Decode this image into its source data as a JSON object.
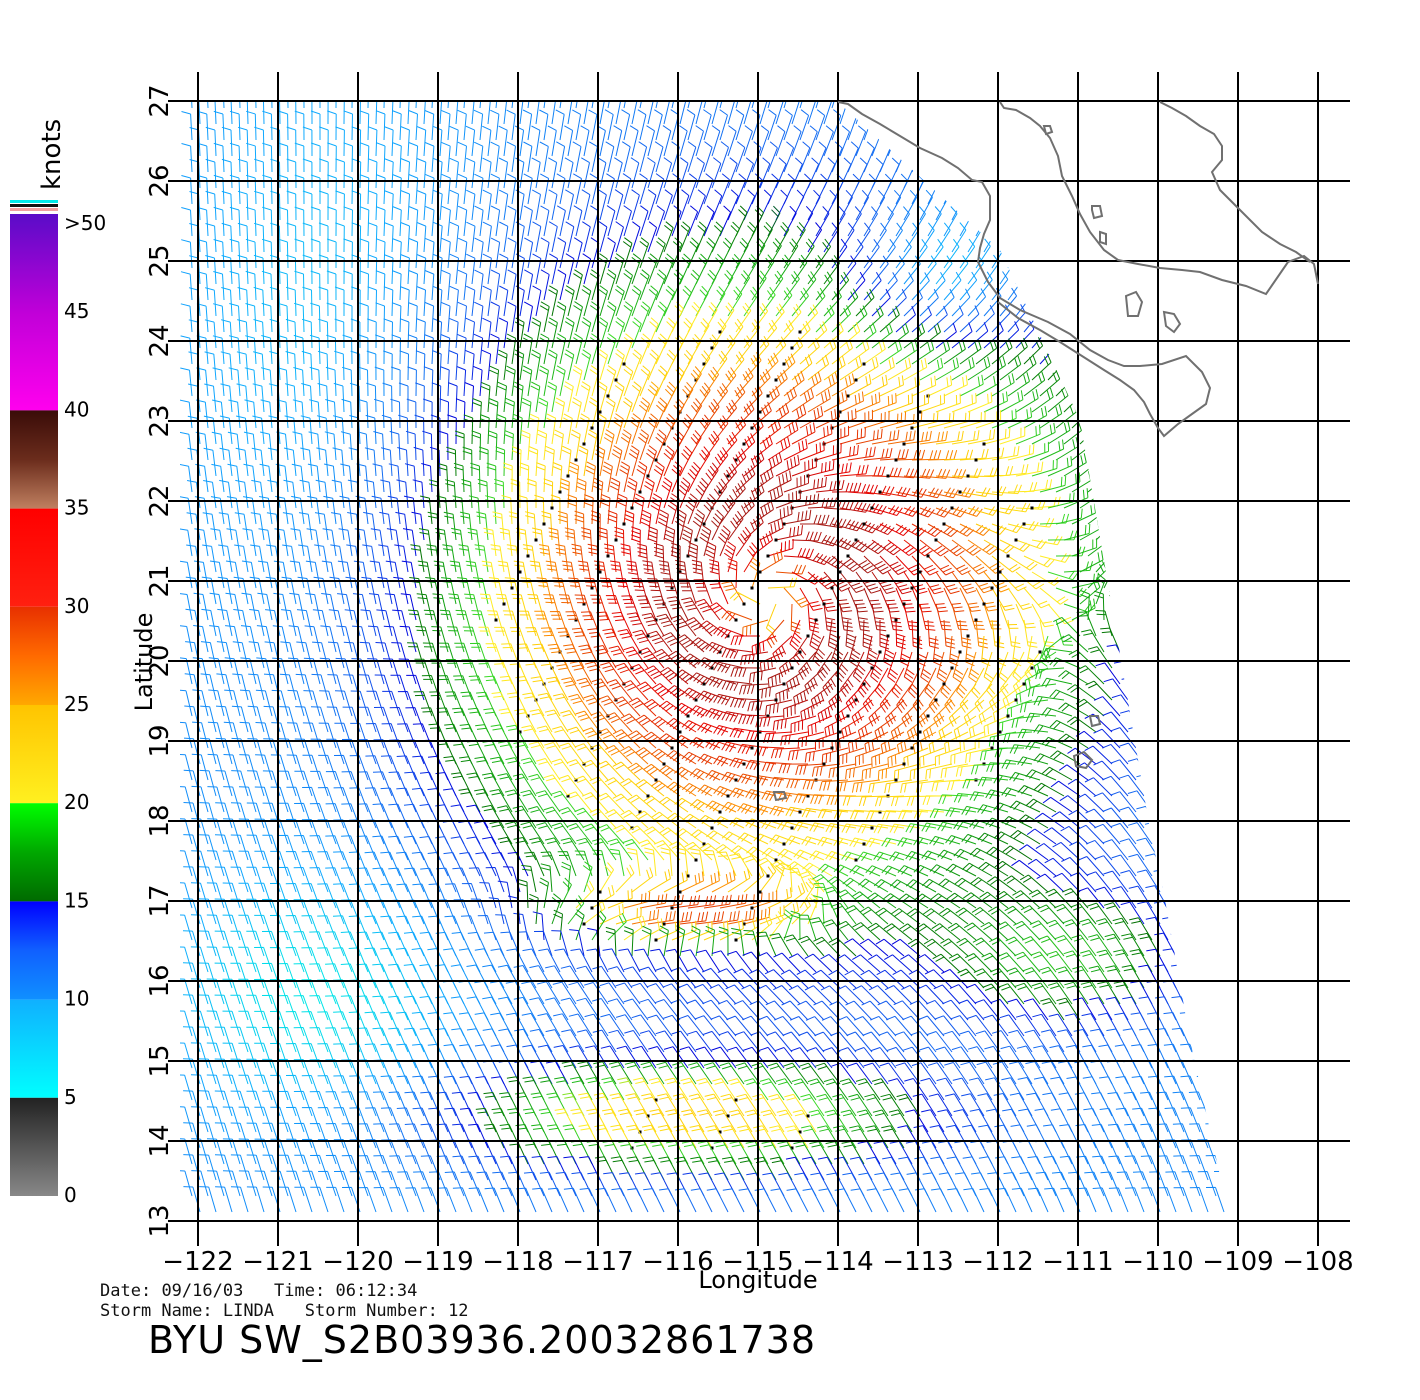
{
  "colorbar": {
    "unit": "knots",
    "labels": [
      ">50",
      "45",
      "40",
      "35",
      "30",
      "25",
      "20",
      "15",
      "10",
      "5",
      "0"
    ],
    "stops": [
      {
        "from": 50,
        "to": 40,
        "colors": [
          "#5a0cc8",
          "#c000d8",
          "#ff00ee"
        ]
      },
      {
        "from": 40,
        "to": 35,
        "colors": [
          "#3a0c08",
          "#6b2c1c",
          "#c08060"
        ]
      },
      {
        "from": 35,
        "to": 30,
        "colors": [
          "#ff0000",
          "#ff2010"
        ]
      },
      {
        "from": 30,
        "to": 25,
        "colors": [
          "#e83000",
          "#ff6a00",
          "#ffa800"
        ]
      },
      {
        "from": 25,
        "to": 20,
        "colors": [
          "#ffc400",
          "#fff020"
        ]
      },
      {
        "from": 20,
        "to": 15,
        "colors": [
          "#00ff00",
          "#00a800",
          "#006a00"
        ]
      },
      {
        "from": 15,
        "to": 10,
        "colors": [
          "#0000ff",
          "#1060ff",
          "#1090ff"
        ]
      },
      {
        "from": 10,
        "to": 5,
        "colors": [
          "#10b0ff",
          "#00ffff"
        ]
      },
      {
        "from": 5,
        "to": 0,
        "colors": [
          "#222222",
          "#555555",
          "#888888"
        ]
      }
    ],
    "top_strip_colors": [
      "#00e8e8",
      "#111111",
      "#f0a0a0"
    ]
  },
  "map": {
    "lon_range": [
      -122,
      -108
    ],
    "lat_range": [
      13,
      27
    ],
    "xlabel": "Longitude",
    "ylabel": "Latitude",
    "lon_ticks": [
      "−122",
      "−121",
      "−120",
      "−119",
      "−118",
      "−117",
      "−116",
      "−115",
      "−114",
      "−113",
      "−112",
      "−111",
      "−110",
      "−109",
      "−108"
    ],
    "lat_ticks": [
      "13",
      "14",
      "15",
      "16",
      "17",
      "18",
      "19",
      "20",
      "21",
      "22",
      "23",
      "24",
      "25",
      "26",
      "27"
    ],
    "storm_center": {
      "lon": -114.9,
      "lat": 20.8
    },
    "secondary_jet": {
      "lon": -116.0,
      "lat": 16.8
    },
    "coast_color": "#707070",
    "grid": true
  },
  "footer": {
    "date_label": "Date:",
    "date": "09/16/03",
    "time_label": "Time:",
    "time": "06:12:34",
    "storm_name_label": "Storm Name:",
    "storm_name": "LINDA",
    "storm_number_label": "Storm Number:",
    "storm_number": "12",
    "title": "BYU SW_S2B03936.20032861738"
  }
}
